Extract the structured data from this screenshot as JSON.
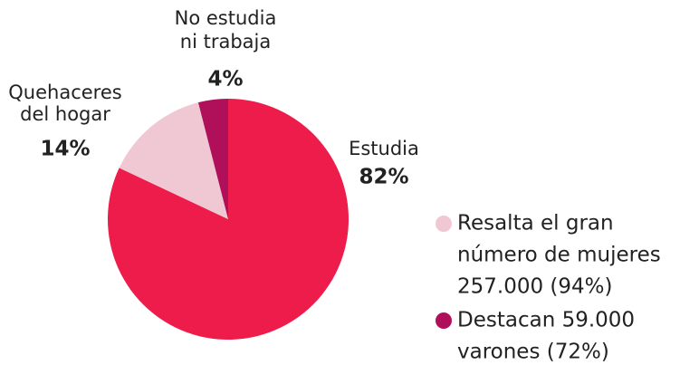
{
  "chart_data": {
    "type": "pie",
    "categories": [
      [
        "Estudia"
      ],
      [
        "Quehaceres",
        "del hogar"
      ],
      [
        "No estudia",
        "ni trabaja"
      ]
    ],
    "values": [
      82,
      14,
      4
    ],
    "value_labels": [
      "82%",
      "14%",
      "4%"
    ],
    "colors": [
      "#ee1c4a",
      "#f0c8d3",
      "#b0105a"
    ],
    "notes": [
      {
        "color": "#f0c8d3",
        "lines": [
          "Resalta el gran",
          "número de mujeres",
          "257.000 (94%)"
        ]
      },
      {
        "color": "#b0105a",
        "lines": [
          "Destacan 59.000",
          "varones (72%)"
        ]
      }
    ]
  }
}
